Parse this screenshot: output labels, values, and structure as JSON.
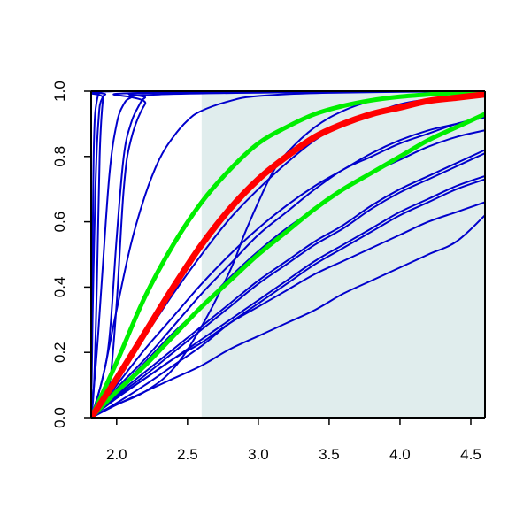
{
  "chart_data": {
    "type": "line",
    "title": "",
    "xlabel": "",
    "ylabel": "",
    "xlim": [
      1.82,
      4.6
    ],
    "ylim": [
      0,
      1
    ],
    "xticks": [
      {
        "value": 2.0,
        "label": "2.0"
      },
      {
        "value": 2.5,
        "label": "2.5"
      },
      {
        "value": 3.0,
        "label": "3.0"
      },
      {
        "value": 3.5,
        "label": "3.5"
      },
      {
        "value": 4.0,
        "label": "4.0"
      },
      {
        "value": 4.5,
        "label": "4.5"
      }
    ],
    "yticks": [
      {
        "value": 0.0,
        "label": "0.0"
      },
      {
        "value": 0.2,
        "label": "0.2"
      },
      {
        "value": 0.4,
        "label": "0.4"
      },
      {
        "value": 0.6,
        "label": "0.6"
      },
      {
        "value": 0.8,
        "label": "0.8"
      },
      {
        "value": 1.0,
        "label": "1.0"
      }
    ],
    "shaded_region": {
      "x_start": 2.6,
      "x_end": 4.6,
      "y_start": 0,
      "y_end": 1,
      "color": "#e0eded"
    },
    "grid": false,
    "legend": "none",
    "colors": {
      "primary": "#ff0000",
      "bounds": "#00ee00",
      "samples": "#0000cc"
    },
    "series": [
      {
        "role": "sample",
        "color": "#0000cc",
        "width": 2,
        "x": [
          1.82,
          1.83,
          1.84,
          1.86,
          1.9,
          2.0,
          4.6
        ],
        "y": [
          0,
          0.5,
          0.85,
          0.97,
          1,
          1,
          1
        ]
      },
      {
        "role": "sample",
        "color": "#0000cc",
        "width": 2,
        "x": [
          1.82,
          1.83,
          1.85,
          1.87,
          1.9,
          2.0,
          4.6
        ],
        "y": [
          0,
          0.3,
          0.7,
          0.9,
          0.98,
          1,
          1
        ]
      },
      {
        "role": "sample",
        "color": "#0000cc",
        "width": 2,
        "x": [
          1.82,
          1.84,
          1.86,
          1.88,
          1.9,
          1.92,
          2.0,
          4.6
        ],
        "y": [
          0,
          0.1,
          0.4,
          0.8,
          0.96,
          0.99,
          1,
          1
        ]
      },
      {
        "role": "sample",
        "color": "#0000cc",
        "width": 2,
        "x": [
          1.82,
          1.86,
          1.9,
          1.95,
          2.0,
          2.05,
          2.1,
          2.2,
          4.6
        ],
        "y": [
          0,
          0.2,
          0.45,
          0.75,
          0.9,
          0.96,
          0.98,
          0.995,
          1
        ]
      },
      {
        "role": "sample",
        "color": "#0000cc",
        "width": 2,
        "x": [
          1.82,
          1.9,
          1.95,
          2.0,
          2.05,
          2.1,
          2.15,
          2.2,
          2.3,
          4.6
        ],
        "y": [
          0,
          0.12,
          0.25,
          0.55,
          0.8,
          0.9,
          0.95,
          0.98,
          0.995,
          1
        ]
      },
      {
        "role": "sample",
        "color": "#0000cc",
        "width": 2,
        "x": [
          1.82,
          1.9,
          1.95,
          2.0,
          2.05,
          2.1,
          2.2,
          2.3,
          4.6
        ],
        "y": [
          0,
          0.06,
          0.1,
          0.35,
          0.7,
          0.85,
          0.96,
          0.99,
          1
        ]
      },
      {
        "role": "sample",
        "color": "#0000cc",
        "width": 2,
        "x": [
          1.82,
          1.9,
          2.0,
          2.1,
          2.2,
          2.3,
          2.4,
          2.5,
          2.6,
          2.8,
          3.0,
          3.5,
          4.6
        ],
        "y": [
          0,
          0.12,
          0.33,
          0.53,
          0.68,
          0.79,
          0.86,
          0.91,
          0.94,
          0.97,
          0.985,
          0.995,
          1
        ]
      },
      {
        "role": "sample",
        "color": "#0000cc",
        "width": 2,
        "x": [
          1.82,
          2.0,
          2.2,
          2.4,
          2.6,
          2.8,
          3.0,
          3.2,
          3.4,
          3.6,
          3.8,
          4.0,
          4.2,
          4.4,
          4.6
        ],
        "y": [
          0,
          0.1,
          0.21,
          0.31,
          0.41,
          0.5,
          0.58,
          0.65,
          0.71,
          0.76,
          0.81,
          0.85,
          0.88,
          0.9,
          0.92
        ]
      },
      {
        "role": "sample",
        "color": "#0000cc",
        "width": 2,
        "x": [
          1.82,
          2.0,
          2.2,
          2.4,
          2.6,
          2.8,
          3.0,
          3.2,
          3.4,
          3.6,
          3.8,
          4.0,
          4.2,
          4.4,
          4.6
        ],
        "y": [
          0,
          0.08,
          0.17,
          0.26,
          0.34,
          0.43,
          0.51,
          0.58,
          0.64,
          0.7,
          0.75,
          0.79,
          0.83,
          0.86,
          0.88
        ]
      },
      {
        "role": "sample",
        "color": "#0000cc",
        "width": 2,
        "x": [
          1.82,
          2.0,
          2.2,
          2.4,
          2.6,
          2.8,
          3.0,
          3.2,
          3.4,
          3.6,
          3.8,
          4.0,
          4.2,
          4.4,
          4.6
        ],
        "y": [
          0,
          0.07,
          0.14,
          0.21,
          0.28,
          0.35,
          0.42,
          0.48,
          0.54,
          0.59,
          0.65,
          0.7,
          0.74,
          0.78,
          0.82
        ]
      },
      {
        "role": "sample",
        "color": "#0000cc",
        "width": 2,
        "x": [
          1.82,
          2.0,
          2.2,
          2.4,
          2.6,
          2.8,
          3.0,
          3.2,
          3.4,
          3.6,
          3.8,
          4.0,
          4.2,
          4.4,
          4.6
        ],
        "y": [
          0,
          0.065,
          0.13,
          0.2,
          0.27,
          0.34,
          0.41,
          0.47,
          0.53,
          0.58,
          0.64,
          0.69,
          0.73,
          0.77,
          0.81
        ]
      },
      {
        "role": "sample",
        "color": "#0000cc",
        "width": 2,
        "x": [
          1.82,
          2.0,
          2.2,
          2.4,
          2.6,
          2.8,
          3.0,
          3.2,
          3.4,
          3.6,
          3.8,
          4.0,
          4.2,
          4.4,
          4.6
        ],
        "y": [
          0,
          0.06,
          0.12,
          0.18,
          0.24,
          0.3,
          0.36,
          0.42,
          0.48,
          0.53,
          0.58,
          0.63,
          0.67,
          0.71,
          0.74
        ]
      },
      {
        "role": "sample",
        "color": "#0000cc",
        "width": 2,
        "x": [
          1.82,
          2.0,
          2.2,
          2.4,
          2.6,
          2.8,
          3.0,
          3.2,
          3.4,
          3.6,
          3.8,
          4.0,
          4.2,
          4.4,
          4.6
        ],
        "y": [
          0,
          0.06,
          0.12,
          0.18,
          0.23,
          0.29,
          0.34,
          0.39,
          0.44,
          0.48,
          0.52,
          0.56,
          0.6,
          0.63,
          0.66
        ]
      },
      {
        "role": "sample",
        "color": "#0000cc",
        "width": 2,
        "x": [
          1.82,
          2.0,
          2.2,
          2.4,
          2.6,
          2.8,
          3.0,
          3.2,
          3.4,
          3.6,
          3.8,
          4.0,
          4.2,
          4.4,
          4.6
        ],
        "y": [
          0,
          0.045,
          0.1,
          0.16,
          0.22,
          0.29,
          0.35,
          0.41,
          0.47,
          0.52,
          0.57,
          0.62,
          0.66,
          0.7,
          0.73
        ]
      },
      {
        "role": "sample",
        "color": "#0000cc",
        "width": 2,
        "x": [
          1.82,
          2.0,
          2.2,
          2.4,
          2.6,
          2.8,
          3.0,
          3.2,
          3.4,
          3.6,
          3.8,
          4.0,
          4.2,
          4.4,
          4.6
        ],
        "y": [
          0,
          0.04,
          0.08,
          0.12,
          0.16,
          0.21,
          0.25,
          0.29,
          0.33,
          0.38,
          0.42,
          0.46,
          0.5,
          0.54,
          0.62
        ]
      },
      {
        "role": "sample",
        "color": "#0000cc",
        "width": 2,
        "x": [
          1.82,
          2.0,
          2.2,
          2.4,
          2.6,
          2.8,
          2.9,
          3.0,
          3.1,
          3.2,
          3.4,
          3.6,
          3.8,
          4.0,
          4.2,
          4.4,
          4.6
        ],
        "y": [
          0,
          0.04,
          0.08,
          0.15,
          0.28,
          0.45,
          0.56,
          0.66,
          0.75,
          0.81,
          0.89,
          0.94,
          0.97,
          0.985,
          0.993,
          0.997,
          1
        ]
      },
      {
        "role": "sample",
        "color": "#0000cc",
        "width": 2,
        "x": [
          1.82,
          2.0,
          2.2,
          2.4,
          2.6,
          2.8,
          3.0,
          3.2,
          3.4,
          3.6,
          3.8,
          4.0,
          4.2,
          4.4,
          4.6
        ],
        "y": [
          0,
          0.09,
          0.18,
          0.28,
          0.38,
          0.47,
          0.56,
          0.63,
          0.7,
          0.76,
          0.8,
          0.84,
          0.87,
          0.9,
          0.92
        ]
      },
      {
        "role": "sample",
        "color": "#0000cc",
        "width": 2,
        "x": [
          1.82,
          2.0,
          2.2,
          2.4,
          2.6,
          2.8,
          3.0,
          3.2,
          3.4,
          3.6,
          3.8,
          4.0,
          4.2,
          4.4,
          4.6
        ],
        "y": [
          0,
          0.12,
          0.25,
          0.38,
          0.5,
          0.61,
          0.7,
          0.78,
          0.85,
          0.9,
          0.93,
          0.96,
          0.975,
          0.985,
          0.99
        ]
      },
      {
        "role": "bound",
        "color": "#00ee00",
        "width": 5,
        "x": [
          1.82,
          2.0,
          2.2,
          2.4,
          2.6,
          2.8,
          3.0,
          3.2,
          3.4,
          3.6,
          3.8,
          4.0,
          4.2,
          4.4,
          4.6
        ],
        "y": [
          0,
          0.17,
          0.37,
          0.53,
          0.66,
          0.76,
          0.84,
          0.89,
          0.93,
          0.955,
          0.972,
          0.983,
          0.99,
          0.995,
          0.998
        ]
      },
      {
        "role": "bound",
        "color": "#00ee00",
        "width": 5,
        "x": [
          1.82,
          2.0,
          2.2,
          2.4,
          2.6,
          2.8,
          3.0,
          3.2,
          3.4,
          3.6,
          3.8,
          4.0,
          4.2,
          4.4,
          4.6
        ],
        "y": [
          0,
          0.08,
          0.16,
          0.25,
          0.34,
          0.42,
          0.5,
          0.57,
          0.64,
          0.7,
          0.75,
          0.8,
          0.85,
          0.89,
          0.93
        ]
      },
      {
        "role": "main",
        "color": "#ff0000",
        "width": 7,
        "x": [
          1.82,
          2.0,
          2.2,
          2.4,
          2.6,
          2.8,
          3.0,
          3.2,
          3.4,
          3.6,
          3.8,
          4.0,
          4.2,
          4.4,
          4.6
        ],
        "y": [
          0,
          0.12,
          0.26,
          0.4,
          0.53,
          0.64,
          0.73,
          0.8,
          0.86,
          0.9,
          0.93,
          0.95,
          0.97,
          0.98,
          0.99
        ]
      }
    ]
  }
}
